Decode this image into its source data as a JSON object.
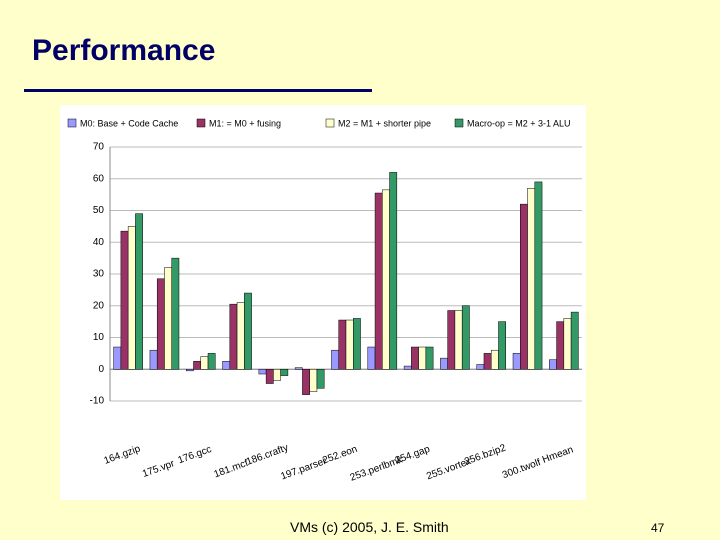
{
  "slide": {
    "title": "Performance",
    "footer": "VMs (c) 2005, J. E. Smith",
    "page_number": "47"
  },
  "chart_data": {
    "type": "bar",
    "categories": [
      "164.gzip",
      "175.vpr",
      "176.gcc",
      "181.mcf",
      "186.crafty",
      "197.parser",
      "252.eon",
      "253.perlbmk",
      "254.gap",
      "255.vortex",
      "256.bzip2",
      "300.twolf",
      "Hmean"
    ],
    "series": [
      {
        "name": "M0: Base + Code Cache",
        "color": "#9999ff",
        "values": [
          7,
          6,
          -0.5,
          2.5,
          -1.5,
          0.5,
          6,
          7,
          1,
          3.5,
          1.5,
          5,
          3
        ]
      },
      {
        "name": "M1: = M0 + fusing",
        "color": "#993366",
        "values": [
          43.5,
          28.5,
          2.5,
          20.5,
          -4.5,
          -8,
          15.5,
          55.5,
          7,
          18.5,
          5,
          52,
          15
        ]
      },
      {
        "name": "M2 = M1 + shorter pipe",
        "color": "#ffffcc",
        "values": [
          45,
          32,
          4,
          21,
          -3.5,
          -7,
          15.5,
          56.5,
          7,
          18.5,
          6,
          57,
          16
        ]
      },
      {
        "name": "Macro-op = M2 + 3-1 ALU",
        "color": "#339966",
        "values": [
          49,
          35,
          5,
          24,
          -2,
          -6,
          16,
          62,
          7,
          20,
          15,
          59,
          18
        ]
      }
    ],
    "ylim": [
      -10,
      70
    ],
    "yticks": [
      -10,
      0,
      10,
      20,
      30,
      40,
      50,
      60,
      70
    ],
    "grid": true,
    "legend": "top"
  }
}
